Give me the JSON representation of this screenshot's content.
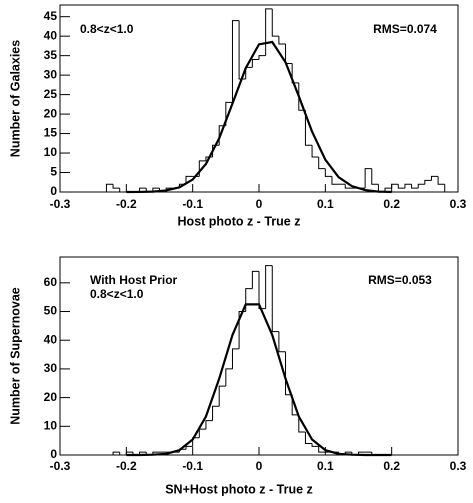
{
  "chart_data": [
    {
      "type": "histogram",
      "y_label": "Number of Galaxies",
      "x_label": "Host photo z - True z",
      "annotations": [
        "0.8<z<1.0",
        "RMS=0.074"
      ],
      "bins": [
        -0.3,
        -0.29,
        -0.28,
        -0.27,
        -0.26,
        -0.25,
        -0.24,
        -0.23,
        -0.22,
        -0.21,
        -0.2,
        -0.19,
        -0.18,
        -0.17,
        -0.16,
        -0.15,
        -0.14,
        -0.13,
        -0.12,
        -0.11,
        -0.1,
        -0.09,
        -0.08,
        -0.07,
        -0.06,
        -0.05,
        -0.04,
        -0.03,
        -0.02,
        -0.01,
        0,
        0.01,
        0.02,
        0.03,
        0.04,
        0.05,
        0.06,
        0.07,
        0.08,
        0.09,
        0.1,
        0.11,
        0.12,
        0.13,
        0.14,
        0.15,
        0.16,
        0.17,
        0.18,
        0.19,
        0.2,
        0.21,
        0.22,
        0.23,
        0.24,
        0.25,
        0.26,
        0.27,
        0.28,
        0.29,
        0.3
      ],
      "values": [
        0,
        0,
        0,
        0,
        0,
        0,
        0,
        2,
        1,
        0,
        0,
        0,
        1,
        0,
        1,
        0,
        1,
        1,
        2,
        4,
        4,
        8,
        9,
        12,
        17,
        23,
        44,
        29,
        32,
        34,
        35,
        47,
        40,
        38,
        33,
        28,
        21,
        12,
        9,
        6,
        4,
        2,
        2,
        1,
        1,
        1,
        6,
        2,
        0,
        1,
        2,
        1,
        2,
        1,
        2,
        3,
        4,
        2,
        0,
        0
      ],
      "fit_x": [
        -0.2,
        -0.18,
        -0.16,
        -0.14,
        -0.12,
        -0.1,
        -0.08,
        -0.06,
        -0.04,
        -0.02,
        0,
        0.02,
        0.04,
        0.06,
        0.08,
        0.1,
        0.12,
        0.14,
        0.16,
        0.18,
        0.2
      ],
      "fit_values": [
        0,
        0.02,
        0.1,
        0.4,
        1.2,
        3.2,
        7.2,
        13.8,
        22.7,
        31.8,
        37.9,
        38.5,
        33.3,
        24.6,
        15.5,
        8.3,
        3.8,
        1.5,
        0.5,
        0.1,
        0
      ],
      "color": "#000000",
      "xlim": [
        -0.3,
        0.3
      ],
      "ylim": [
        0,
        48
      ],
      "xticks": [
        -0.3,
        -0.2,
        -0.1,
        0,
        0.1,
        0.2,
        0.3
      ],
      "yticks": [
        0,
        5,
        10,
        15,
        20,
        25,
        30,
        35,
        40,
        45
      ]
    },
    {
      "type": "histogram",
      "y_label": "Number of Supernovae",
      "x_label": "SN+Host photo z - True z",
      "annotations": [
        "With Host Prior",
        "0.8<z<1.0",
        "RMS=0.053"
      ],
      "bins": [
        -0.3,
        -0.29,
        -0.28,
        -0.27,
        -0.26,
        -0.25,
        -0.24,
        -0.23,
        -0.22,
        -0.21,
        -0.2,
        -0.19,
        -0.18,
        -0.17,
        -0.16,
        -0.15,
        -0.14,
        -0.13,
        -0.12,
        -0.11,
        -0.1,
        -0.09,
        -0.08,
        -0.07,
        -0.06,
        -0.05,
        -0.04,
        -0.03,
        -0.02,
        -0.01,
        0,
        0.01,
        0.02,
        0.03,
        0.04,
        0.05,
        0.06,
        0.07,
        0.08,
        0.09,
        0.1,
        0.11,
        0.12,
        0.13,
        0.14,
        0.15,
        0.16,
        0.17,
        0.18,
        0.19,
        0.2,
        0.21,
        0.22,
        0.23,
        0.24,
        0.25,
        0.26,
        0.27,
        0.28,
        0.29,
        0.3
      ],
      "values": [
        0,
        0,
        0,
        0,
        0,
        0,
        0,
        0,
        1,
        0,
        1,
        0,
        1,
        0,
        1,
        1,
        1,
        1,
        2,
        3,
        6,
        9,
        12,
        17,
        24,
        30,
        37,
        50,
        58,
        64,
        51,
        66,
        43,
        36,
        21,
        14,
        8,
        4,
        3,
        1,
        1,
        1,
        0,
        1,
        0,
        1,
        1,
        0,
        0,
        0,
        0,
        0,
        0,
        0,
        0,
        0,
        0,
        0,
        0,
        0
      ],
      "fit_x": [
        -0.2,
        -0.18,
        -0.16,
        -0.14,
        -0.12,
        -0.1,
        -0.08,
        -0.06,
        -0.04,
        -0.02,
        0,
        0.02,
        0.04,
        0.06,
        0.08,
        0.1,
        0.12,
        0.14,
        0.16,
        0.18,
        0.2
      ],
      "fit_values": [
        0,
        0,
        0.1,
        0.4,
        1.7,
        5.4,
        13.4,
        26.6,
        41.8,
        52.5,
        52.5,
        41.8,
        26.6,
        13.4,
        5.4,
        1.7,
        0.4,
        0.1,
        0,
        0,
        0
      ],
      "color": "#000000",
      "xlim": [
        -0.3,
        0.3
      ],
      "ylim": [
        0,
        69
      ],
      "xticks": [
        -0.3,
        -0.2,
        -0.1,
        0,
        0.1,
        0.2,
        0.3
      ],
      "yticks": [
        0,
        10,
        20,
        30,
        40,
        50,
        60
      ]
    }
  ]
}
